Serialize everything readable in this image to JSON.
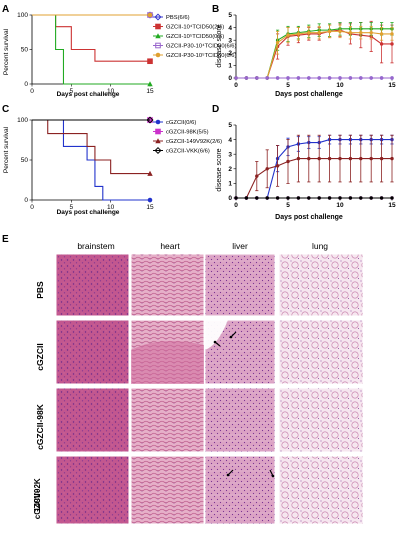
{
  "figure": {
    "panels": [
      "A",
      "B",
      "C",
      "D",
      "E"
    ]
  },
  "chart_data": [
    {
      "panel": "A",
      "type": "line",
      "xlabel": "Days post challenge",
      "ylabel": "Percent survival",
      "xlim": [
        0,
        15
      ],
      "ylim": [
        0,
        100
      ],
      "xticks": [
        0,
        5,
        10,
        15
      ],
      "yticks": [
        0,
        50,
        100
      ],
      "legend_position": "right",
      "series": [
        {
          "name": "PBS(6/6)",
          "color": "#3333cc",
          "marker": "diamond",
          "x": [
            0,
            15
          ],
          "y": [
            100,
            100
          ]
        },
        {
          "name": "GZCII-10⁴TCID50(2/6)",
          "color": "#cc3333",
          "marker": "square",
          "x": [
            0,
            3,
            5,
            8,
            15
          ],
          "y": [
            100,
            83,
            50,
            33,
            33
          ]
        },
        {
          "name": "GZCII-10⁵TCID50(0/6)",
          "color": "#22aa22",
          "marker": "triangle",
          "x": [
            0,
            3,
            4,
            15
          ],
          "y": [
            100,
            50,
            0,
            0
          ]
        },
        {
          "name": "GZCII-P30-10⁴TCID50(6/6)",
          "color": "#9966cc",
          "marker": "open-square",
          "x": [
            0,
            15
          ],
          "y": [
            100,
            100
          ]
        },
        {
          "name": "GZCII-P30-10⁵TCID50(6/6)",
          "color": "#e0a030",
          "marker": "circle",
          "x": [
            0,
            15
          ],
          "y": [
            100,
            100
          ]
        }
      ]
    },
    {
      "panel": "B",
      "type": "line",
      "xlabel": "Days post challenge",
      "ylabel": "disease score",
      "xlim": [
        0,
        15
      ],
      "ylim": [
        0,
        5
      ],
      "xticks": [
        0,
        5,
        10,
        15
      ],
      "yticks": [
        0,
        1,
        2,
        3,
        4,
        5
      ],
      "series": [
        {
          "color": "#cc3333",
          "x": [
            0,
            1,
            2,
            3,
            4,
            5,
            6,
            7,
            8,
            9,
            10,
            11,
            12,
            13,
            14,
            15
          ],
          "y": [
            0,
            0,
            0,
            0,
            2.5,
            3.3,
            3.4,
            3.5,
            3.5,
            3.7,
            3.8,
            3.5,
            3.4,
            3.3,
            2.7,
            2.7
          ],
          "err": [
            0,
            0,
            0,
            0,
            1.0,
            0.7,
            0.6,
            0.5,
            0.5,
            0.5,
            0.5,
            0.8,
            1.0,
            1.2,
            1.5,
            1.5
          ]
        },
        {
          "color": "#22aa22",
          "x": [
            0,
            1,
            2,
            3,
            4,
            5,
            6,
            7,
            8,
            9,
            10,
            11,
            12,
            13,
            14,
            15
          ],
          "y": [
            0,
            0,
            0,
            0,
            3.0,
            3.5,
            3.6,
            3.7,
            3.8,
            3.8,
            3.9,
            3.9,
            3.9,
            3.9,
            3.9,
            3.9
          ],
          "err": [
            0,
            0,
            0,
            0,
            0.8,
            0.6,
            0.5,
            0.5,
            0.5,
            0.5,
            0.5,
            0.5,
            0.5,
            0.5,
            0.5,
            0.5
          ]
        },
        {
          "color": "#e0a030",
          "x": [
            0,
            1,
            2,
            3,
            4,
            5,
            6,
            7,
            8,
            9,
            10,
            11,
            12,
            13,
            14,
            15
          ],
          "y": [
            0,
            0,
            0,
            0,
            2.8,
            3.4,
            3.5,
            3.6,
            3.6,
            3.7,
            3.7,
            3.6,
            3.6,
            3.6,
            3.5,
            3.5
          ],
          "err": [
            0,
            0,
            0,
            0,
            0.9,
            0.6,
            0.5,
            0.5,
            0.5,
            0.5,
            0.5,
            0.5,
            0.5,
            0.5,
            0.5,
            0.5
          ]
        },
        {
          "color": "#3333cc",
          "x": [
            0,
            1,
            2,
            3,
            4,
            5,
            6,
            7,
            8,
            9,
            10,
            11,
            12,
            13,
            14,
            15
          ],
          "y": [
            0,
            0,
            0,
            0,
            0,
            0,
            0,
            0,
            0,
            0,
            0,
            0,
            0,
            0,
            0,
            0
          ]
        },
        {
          "color": "#9966cc",
          "x": [
            0,
            1,
            2,
            3,
            4,
            5,
            6,
            7,
            8,
            9,
            10,
            11,
            12,
            13,
            14,
            15
          ],
          "y": [
            0,
            0,
            0,
            0,
            0,
            0,
            0,
            0,
            0,
            0,
            0,
            0,
            0,
            0,
            0,
            0
          ]
        }
      ]
    },
    {
      "panel": "C",
      "type": "line",
      "xlabel": "Days post challenge",
      "ylabel": "Percent survival",
      "xlim": [
        0,
        15
      ],
      "ylim": [
        0,
        100
      ],
      "xticks": [
        0,
        5,
        10,
        15
      ],
      "yticks": [
        0,
        50,
        100
      ],
      "legend_position": "right",
      "series": [
        {
          "name": "cGZCII(0/6)",
          "color": "#2233cc",
          "marker": "circle",
          "x": [
            0,
            4,
            7,
            8,
            9,
            15
          ],
          "y": [
            100,
            67,
            50,
            17,
            0,
            0
          ]
        },
        {
          "name": "cGZCII-98K(5/5)",
          "color": "#cc33cc",
          "marker": "square",
          "x": [
            0,
            15
          ],
          "y": [
            100,
            100
          ]
        },
        {
          "name": "cGZCII-149V92K(2/6)",
          "color": "#8b2222",
          "marker": "triangle",
          "x": [
            0,
            2,
            7,
            8,
            10,
            15
          ],
          "y": [
            100,
            83,
            67,
            50,
            33,
            33
          ]
        },
        {
          "name": "cGZCII-VKK(6/6)",
          "color": "#000000",
          "marker": "diamond",
          "x": [
            0,
            15
          ],
          "y": [
            100,
            100
          ]
        }
      ]
    },
    {
      "panel": "D",
      "type": "line",
      "xlabel": "Days post challenge",
      "ylabel": "disease score",
      "xlim": [
        0,
        15
      ],
      "ylim": [
        0,
        5
      ],
      "xticks": [
        0,
        5,
        10,
        15
      ],
      "yticks": [
        0,
        1,
        2,
        3,
        4,
        5
      ],
      "series": [
        {
          "color": "#2233cc",
          "x": [
            0,
            1,
            2,
            3,
            4,
            5,
            6,
            7,
            8,
            9,
            10,
            11,
            12,
            13,
            14,
            15
          ],
          "y": [
            0,
            0,
            0,
            0,
            2.7,
            3.5,
            3.7,
            3.8,
            3.8,
            4.0,
            4.0,
            4.0,
            4.0,
            4.0,
            4.0,
            4.0
          ],
          "err": [
            0,
            0,
            0,
            0,
            0.9,
            0.6,
            0.5,
            0.4,
            0.4,
            0.3,
            0.3,
            0.3,
            0.3,
            0.3,
            0.3,
            0.3
          ]
        },
        {
          "color": "#8b2222",
          "x": [
            0,
            1,
            2,
            3,
            4,
            5,
            6,
            7,
            8,
            9,
            10,
            11,
            12,
            13,
            14,
            15
          ],
          "y": [
            0,
            0,
            1.5,
            2.0,
            2.2,
            2.5,
            2.7,
            2.7,
            2.7,
            2.7,
            2.7,
            2.7,
            2.7,
            2.7,
            2.7,
            2.7
          ],
          "err": [
            0,
            0,
            1.0,
            1.3,
            1.4,
            1.5,
            1.6,
            1.6,
            1.6,
            1.6,
            1.6,
            1.6,
            1.6,
            1.6,
            1.6,
            1.6
          ]
        },
        {
          "color": "#cc33cc",
          "x": [
            0,
            1,
            2,
            3,
            4,
            5,
            6,
            7,
            8,
            9,
            10,
            11,
            12,
            13,
            14,
            15
          ],
          "y": [
            0,
            0,
            0,
            0,
            0,
            0,
            0,
            0,
            0,
            0,
            0,
            0,
            0,
            0,
            0,
            0
          ]
        },
        {
          "color": "#000000",
          "x": [
            0,
            1,
            2,
            3,
            4,
            5,
            6,
            7,
            8,
            9,
            10,
            11,
            12,
            13,
            14,
            15
          ],
          "y": [
            0,
            0,
            0,
            0,
            0,
            0,
            0,
            0,
            0,
            0,
            0,
            0,
            0,
            0,
            0,
            0
          ]
        }
      ]
    }
  ],
  "histology": {
    "columns": [
      "brainstem",
      "heart",
      "liver",
      "lung"
    ],
    "rows": [
      "PBS",
      "cGZCII",
      "cGZCII-98K",
      "cGZCII-\n149V92K"
    ],
    "colors": {
      "brain": "#c2578f",
      "heart": "#e0a3c0",
      "liver": "#d08ab6",
      "lung": "#f0dbe8"
    }
  }
}
